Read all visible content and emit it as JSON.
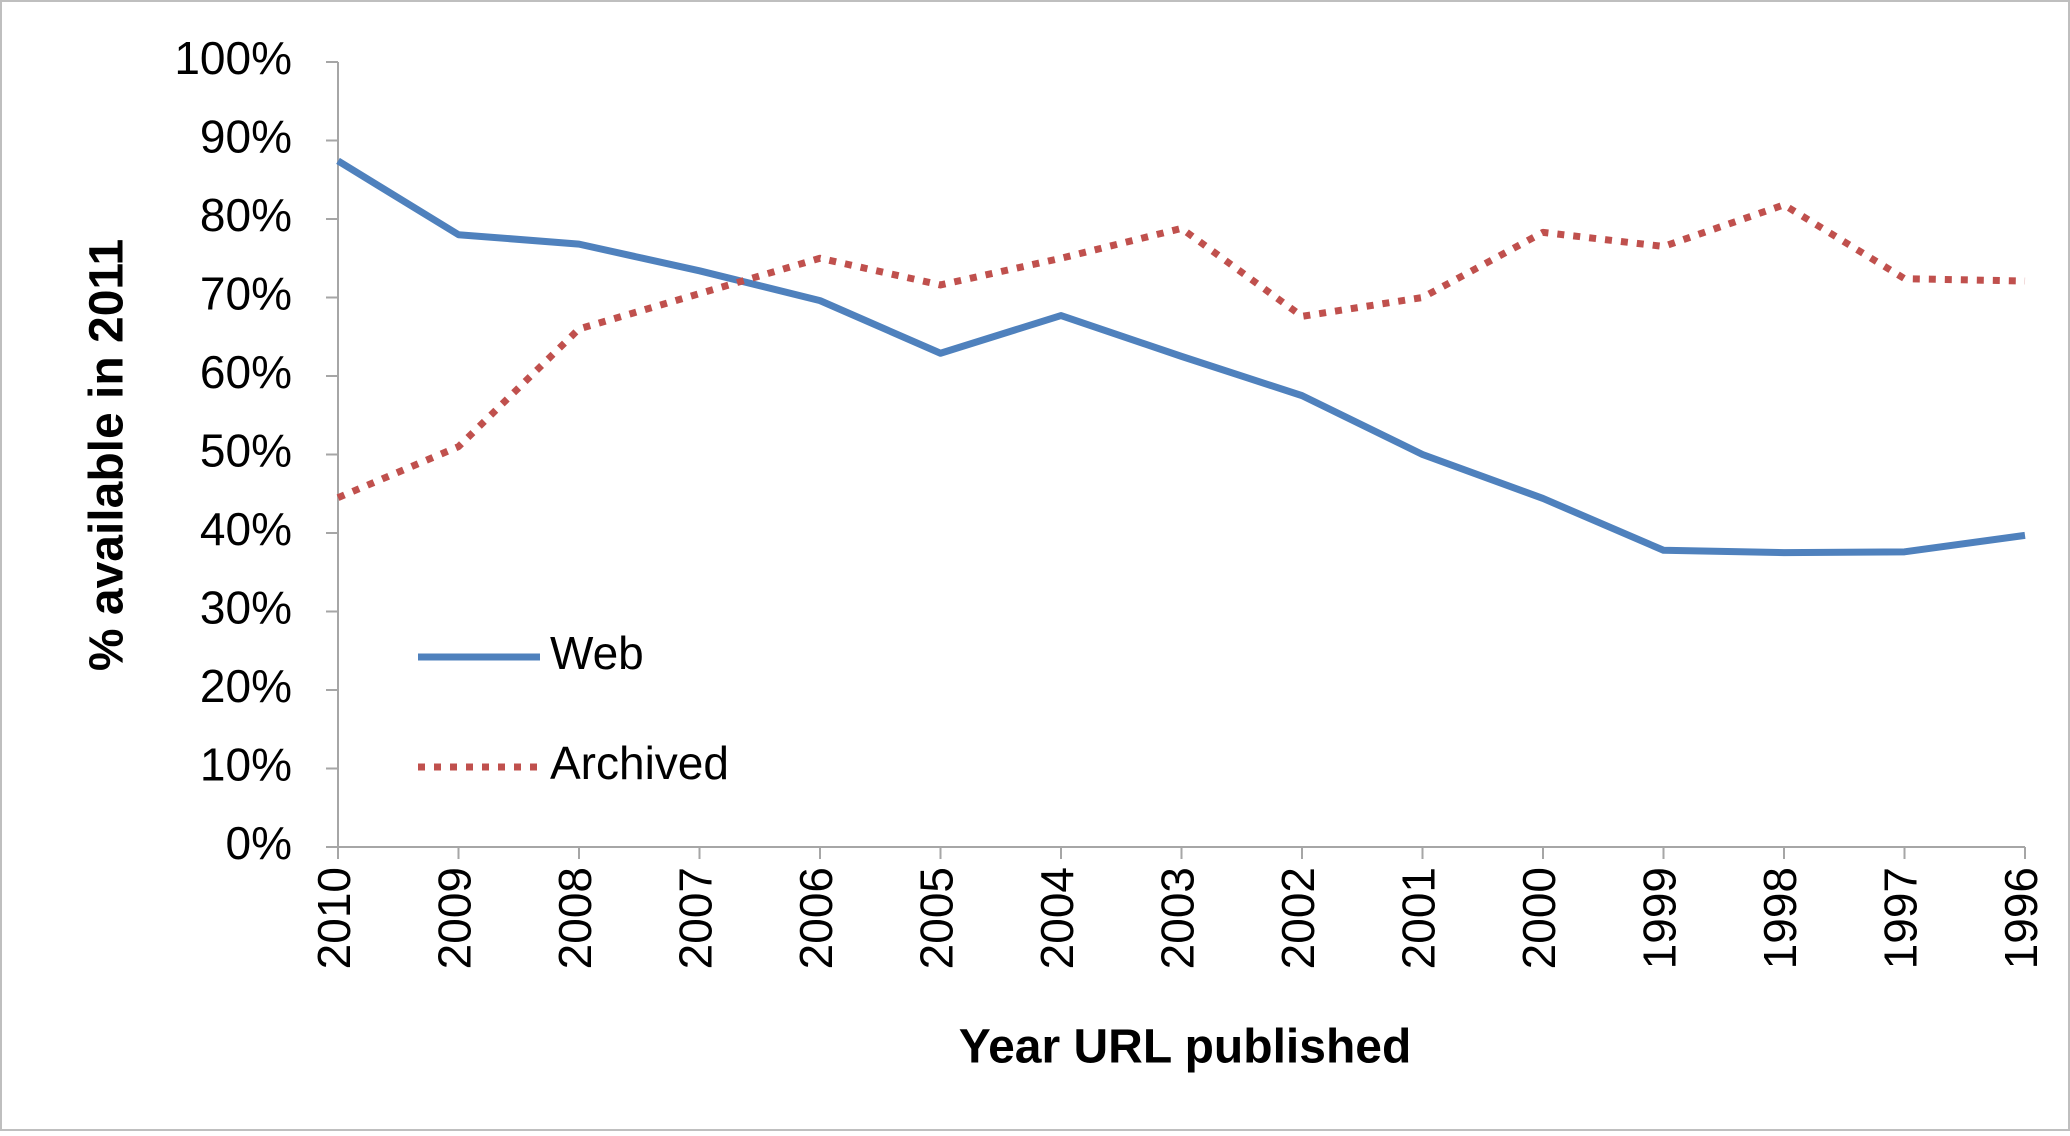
{
  "chart_data": {
    "type": "line",
    "x_label": "Year URL published",
    "y_label": "% available in 2011",
    "categories": [
      "2010",
      "2009",
      "2008",
      "2007",
      "2006",
      "2005",
      "2004",
      "2003",
      "2002",
      "2001",
      "2000",
      "1999",
      "1998",
      "1997",
      "1996"
    ],
    "series": [
      {
        "name": "Web",
        "color": "#4f81bd",
        "style": "solid",
        "values": [
          87.4,
          78,
          76.8,
          73.4,
          69.6,
          62.9,
          67.7,
          62.5,
          57.5,
          50,
          44.4,
          37.8,
          37.5,
          37.6,
          39.7
        ]
      },
      {
        "name": "Archived",
        "color": "#c0504d",
        "style": "dotted",
        "values": [
          44.5,
          51,
          66,
          70.5,
          75,
          71.6,
          75,
          78.8,
          67.6,
          70,
          78.3,
          76.5,
          81.8,
          72.4,
          72.1
        ]
      }
    ],
    "ylim": [
      0,
      100
    ],
    "yticks": [
      {
        "value": 0,
        "label": "0%"
      },
      {
        "value": 10,
        "label": "10%"
      },
      {
        "value": 20,
        "label": "20%"
      },
      {
        "value": 30,
        "label": "30%"
      },
      {
        "value": 40,
        "label": "40%"
      },
      {
        "value": 50,
        "label": "50%"
      },
      {
        "value": 60,
        "label": "60%"
      },
      {
        "value": 70,
        "label": "70%"
      },
      {
        "value": 80,
        "label": "80%"
      },
      {
        "value": 90,
        "label": "90%"
      },
      {
        "value": 100,
        "label": "100%"
      }
    ],
    "grid": false,
    "legend": "lower left"
  }
}
